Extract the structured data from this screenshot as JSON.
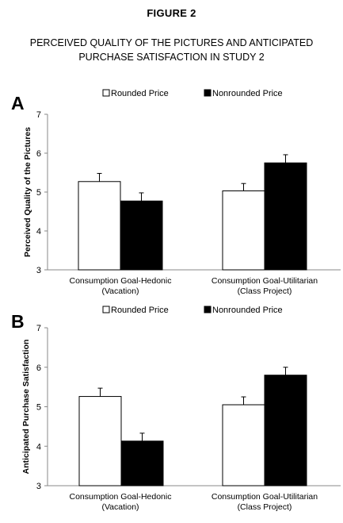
{
  "figure": {
    "label": "FIGURE 2",
    "subtitle_lines": [
      "PERCEIVED QUALITY OF THE PICTURES AND ANTICIPATED",
      "PURCHASE SATISFACTION IN STUDY 2"
    ]
  },
  "chart_data": [
    {
      "panel": "A",
      "type": "bar",
      "ylabel": "Perceived Quality of the Pictures",
      "ylim": [
        3,
        7
      ],
      "yticks": [
        3,
        4,
        5,
        6,
        7
      ],
      "legend_position": "top",
      "grid": false,
      "categories": [
        [
          "Consumption Goal-Hedonic",
          "(Vacation)"
        ],
        [
          "Consumption Goal-Utilitarian",
          "(Class Project)"
        ]
      ],
      "series": [
        {
          "name": "Rounded Price",
          "color": "#ffffff",
          "values": [
            5.27,
            5.03
          ],
          "errors": [
            0.21,
            0.19
          ]
        },
        {
          "name": "Nonrounded Price",
          "color": "#000000",
          "values": [
            4.77,
            5.75
          ],
          "errors": [
            0.21,
            0.21
          ]
        }
      ]
    },
    {
      "panel": "B",
      "type": "bar",
      "ylabel": "Anticipated Purchase Satisfaction",
      "ylim": [
        3,
        7
      ],
      "yticks": [
        3,
        4,
        5,
        6,
        7
      ],
      "legend_position": "top",
      "grid": false,
      "categories": [
        [
          "Consumption Goal-Hedonic",
          "(Vacation)"
        ],
        [
          "Consumption Goal-Utilitarian",
          "(Class Project)"
        ]
      ],
      "series": [
        {
          "name": "Rounded Price",
          "color": "#ffffff",
          "values": [
            5.26,
            5.05
          ],
          "errors": [
            0.21,
            0.2
          ]
        },
        {
          "name": "Nonrounded Price",
          "color": "#000000",
          "values": [
            4.13,
            5.8
          ],
          "errors": [
            0.2,
            0.2
          ]
        }
      ]
    }
  ]
}
